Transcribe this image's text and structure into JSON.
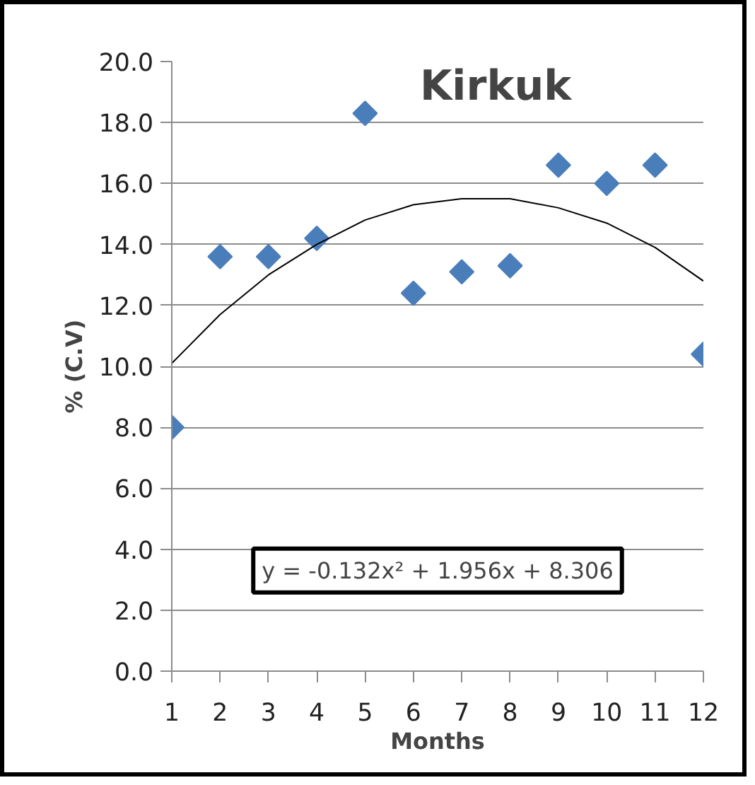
{
  "chart_data": {
    "type": "scatter",
    "title": "Kirkuk",
    "xlabel": "Months",
    "ylabel": "% (C.V)",
    "x": [
      1,
      2,
      3,
      4,
      5,
      6,
      7,
      8,
      9,
      10,
      11,
      12
    ],
    "xlim": [
      1,
      12
    ],
    "xticks": [
      1,
      2,
      3,
      4,
      5,
      6,
      7,
      8,
      9,
      10,
      11,
      12
    ],
    "ylim": [
      0,
      20
    ],
    "yticks": [
      {
        "value": 0,
        "label": "0.0"
      },
      {
        "value": 2,
        "label": "2.0"
      },
      {
        "value": 4,
        "label": "4.0"
      },
      {
        "value": 6,
        "label": "6.0"
      },
      {
        "value": 8,
        "label": "8.0"
      },
      {
        "value": 10,
        "label": "10.0"
      },
      {
        "value": 12,
        "label": "12.0"
      },
      {
        "value": 14,
        "label": "14.0"
      },
      {
        "value": 16,
        "label": "16.0"
      },
      {
        "value": 18,
        "label": "18.0"
      },
      {
        "value": 20,
        "label": "20.0"
      }
    ],
    "grid": "y",
    "marker": "diamond",
    "series": [
      {
        "color": "#4a7ebb",
        "values": [
          8.0,
          13.6,
          13.6,
          14.2,
          18.3,
          12.4,
          13.1,
          13.3,
          16.6,
          16.0,
          16.6,
          10.4
        ]
      },
      {
        "type": "line",
        "color": "#000000",
        "marker": "none",
        "x": [
          1,
          2,
          3,
          4,
          5,
          6,
          7,
          8,
          9,
          10,
          11,
          12
        ],
        "values": [
          10.1,
          11.7,
          13.0,
          14.0,
          14.8,
          15.3,
          15.5,
          15.5,
          15.2,
          14.7,
          13.9,
          12.8
        ]
      }
    ],
    "annotations": [
      "y = -0.132x² + 1.956x + 8.306"
    ]
  }
}
